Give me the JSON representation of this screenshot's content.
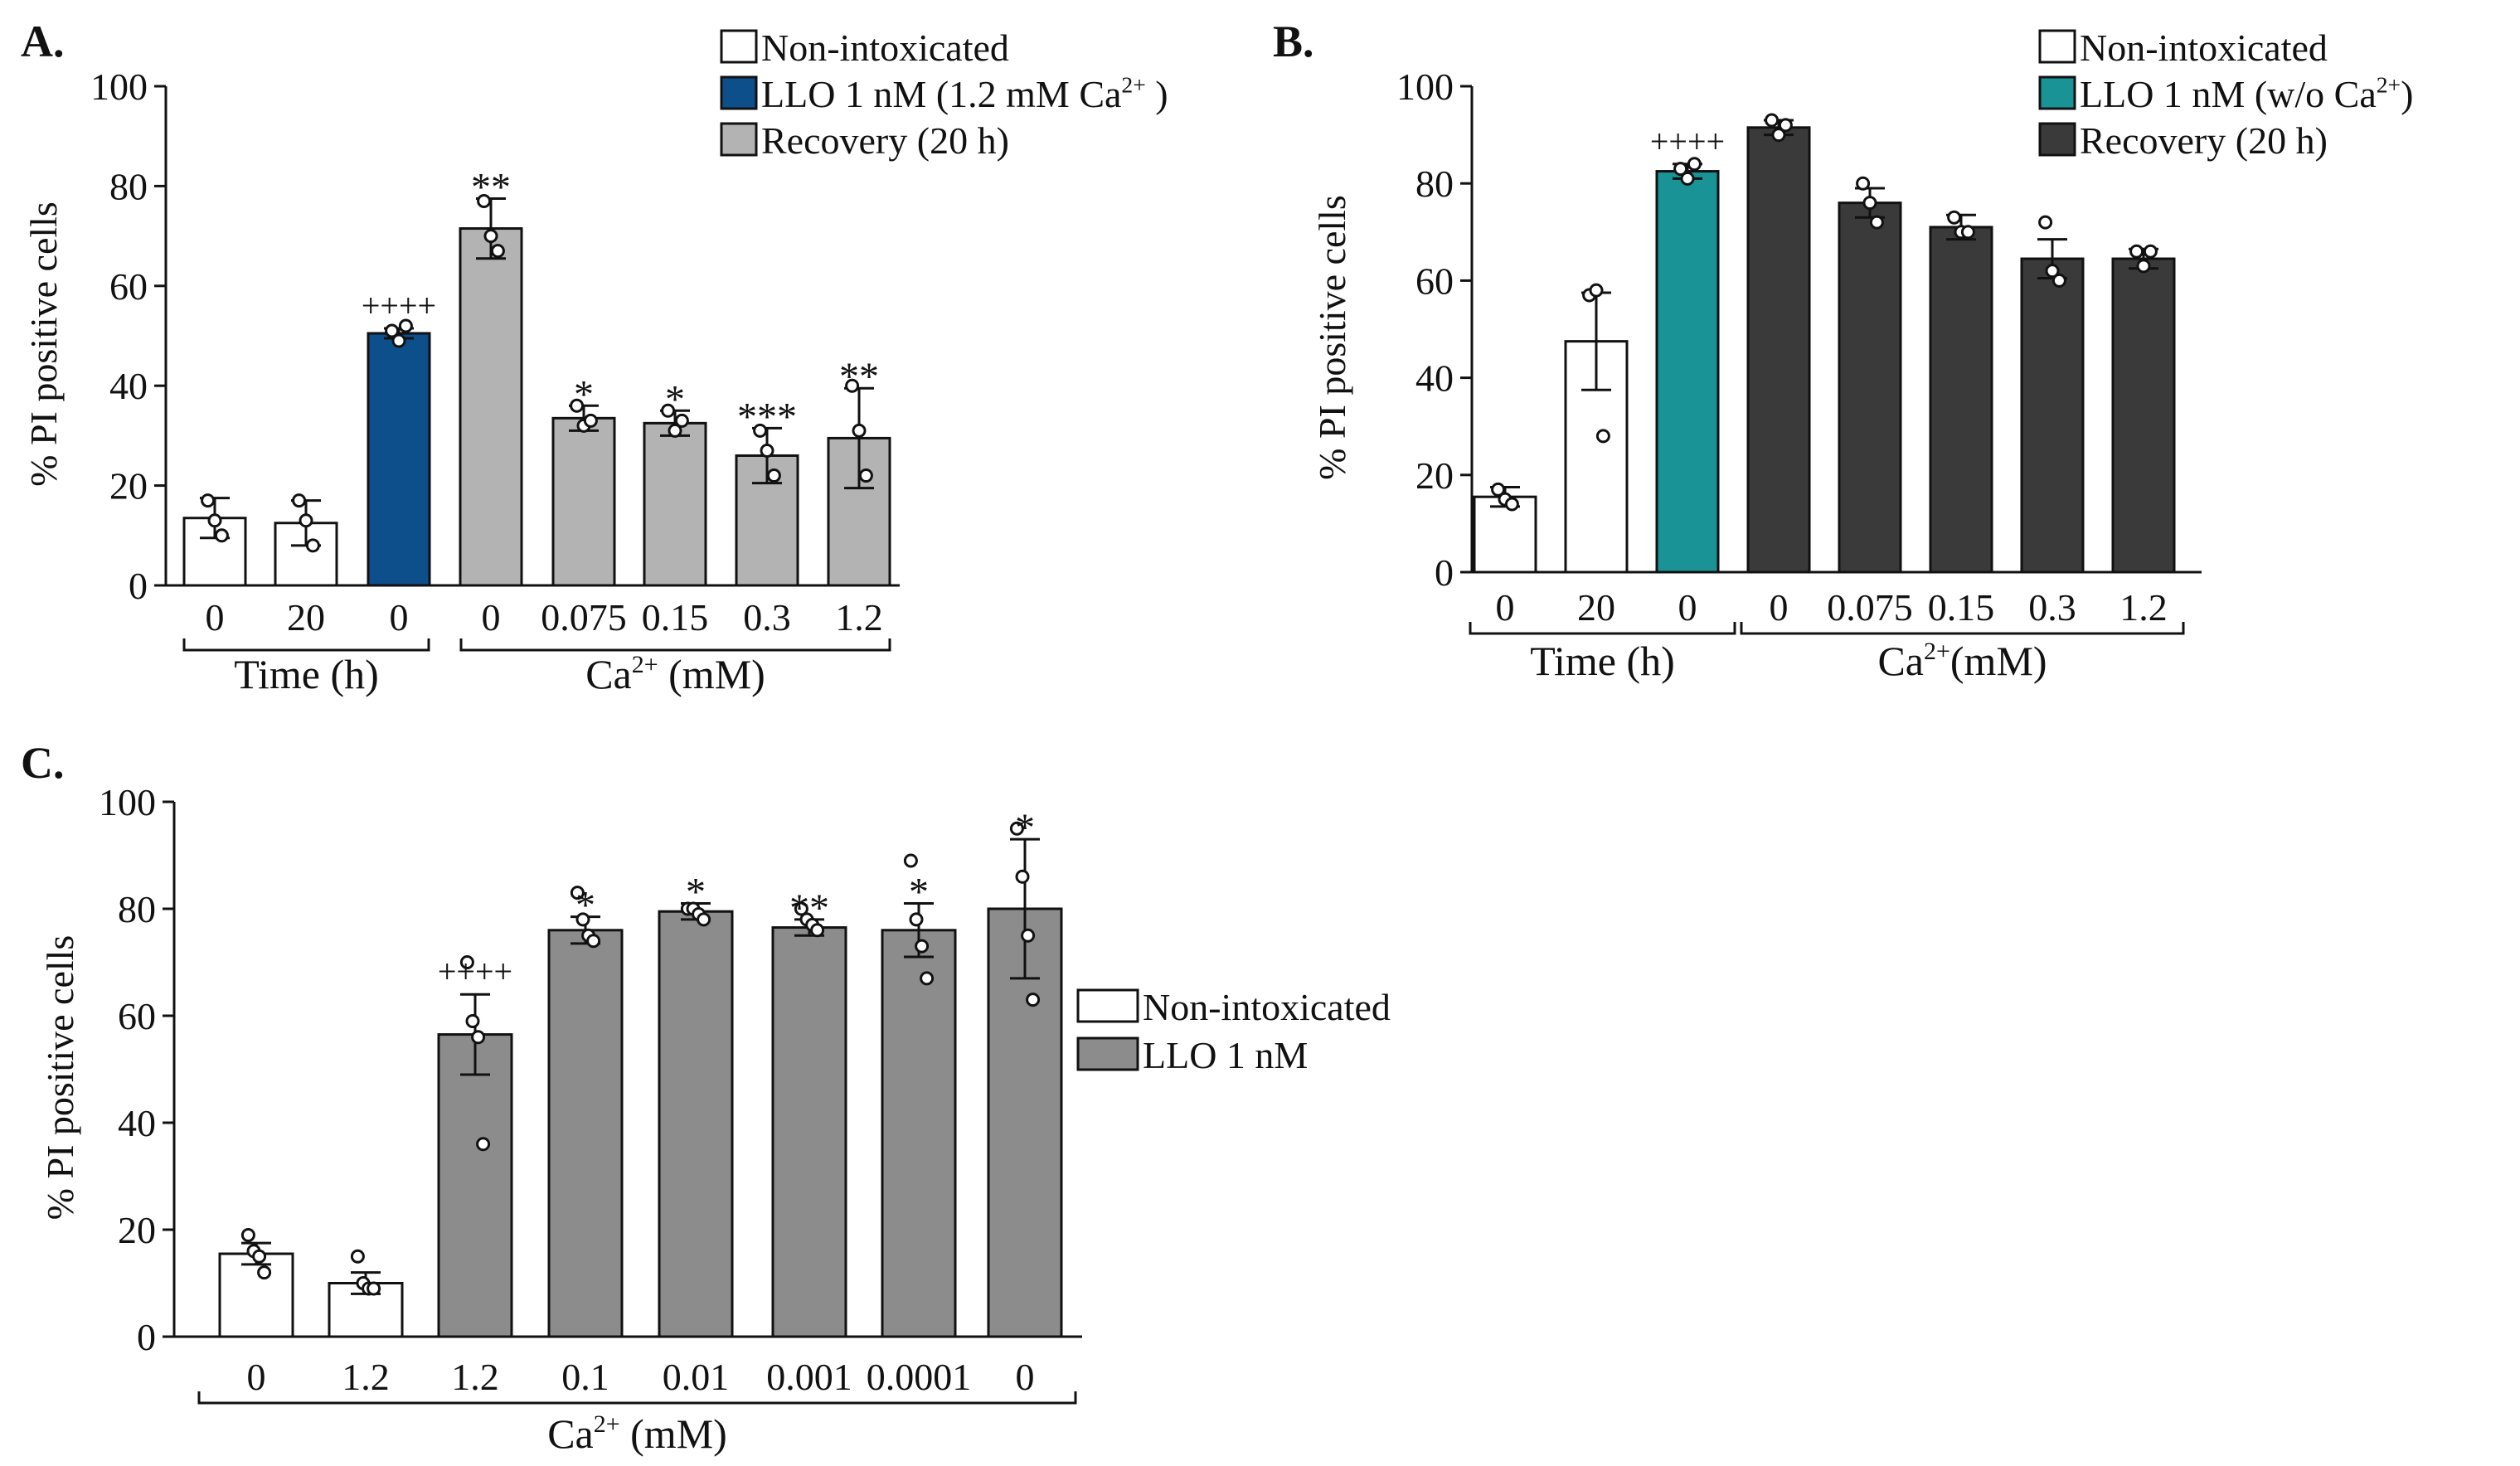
{
  "chart_data": [
    {
      "panel_label": "A.",
      "type": "bar",
      "ylabel": "% PI positive cells",
      "ylim": [
        0,
        100
      ],
      "yticks": [
        "0",
        "20",
        "40",
        "60",
        "80",
        "100"
      ],
      "categories": [
        "0",
        "20",
        "0",
        "0",
        "0.075",
        "0.15",
        "0.3",
        "1.2"
      ],
      "values": [
        13.5,
        12.5,
        50.5,
        71.5,
        33.5,
        32.5,
        26,
        29.5
      ],
      "errors": [
        4,
        4.5,
        1,
        6,
        2.5,
        2.5,
        5.5,
        10
      ],
      "groups": [
        0,
        0,
        1,
        2,
        2,
        2,
        2,
        2
      ],
      "points": [
        [
          17,
          13,
          10
        ],
        [
          17,
          13,
          8
        ],
        [
          51,
          49,
          52
        ],
        [
          77,
          70,
          67
        ],
        [
          36,
          32,
          33
        ],
        [
          35,
          31,
          33
        ],
        [
          31,
          27,
          22
        ],
        [
          40,
          31,
          22
        ]
      ],
      "stars": [
        "",
        "",
        "++++",
        "**",
        "*",
        "*",
        "***",
        "**"
      ],
      "brackets": [
        {
          "label": "Time (h)",
          "from": 0,
          "to": 2
        },
        {
          "label": "Ca",
          "sup": "2+",
          "suffix": " (mM)",
          "from": 3,
          "to": 7
        }
      ],
      "legend": {
        "position": "top-right",
        "entries": [
          {
            "label": "Non-intoxicated",
            "sup": "",
            "after": ""
          },
          {
            "label": "LLO 1 nM (1.2 mM Ca",
            "sup": "2+",
            "after": " )"
          },
          {
            "label": "Recovery (20 h)",
            "sup": "",
            "after": ""
          }
        ]
      },
      "colors": [
        "#ffffff",
        "#0d4f8b",
        "#b3b3b3"
      ]
    },
    {
      "panel_label": "B.",
      "type": "bar",
      "ylabel": "% PI positive cells",
      "ylim": [
        0,
        100
      ],
      "yticks": [
        "0",
        "20",
        "40",
        "60",
        "80",
        "100"
      ],
      "categories": [
        "0",
        "20",
        "0",
        "0",
        "0.075",
        "0.15",
        "0.3",
        "1.2"
      ],
      "values": [
        15.5,
        47.5,
        82.5,
        91.5,
        76,
        71,
        64.5,
        64.5
      ],
      "errors": [
        2,
        10,
        1.5,
        1.5,
        3,
        2.5,
        4,
        2
      ],
      "groups": [
        0,
        0,
        1,
        2,
        2,
        2,
        2,
        2
      ],
      "points": [
        [
          17,
          15,
          14
        ],
        [
          57,
          58,
          28
        ],
        [
          83,
          81,
          84
        ],
        [
          93,
          90,
          92
        ],
        [
          80,
          76,
          72
        ],
        [
          73,
          70,
          70
        ],
        [
          72,
          62,
          60
        ],
        [
          66,
          63,
          66
        ]
      ],
      "stars": [
        "",
        "",
        "++++",
        "",
        "",
        "",
        "",
        ""
      ],
      "brackets": [
        {
          "label": "Time (h)",
          "from": 0,
          "to": 2
        },
        {
          "label": "Ca",
          "sup": "2+",
          "suffix": "(mM)",
          "from": 3,
          "to": 7
        }
      ],
      "legend": {
        "position": "top-right",
        "entries": [
          {
            "label": "Non-intoxicated",
            "sup": "",
            "after": ""
          },
          {
            "label": "LLO 1 nM (w/o Ca",
            "sup": "2+",
            "after": ")"
          },
          {
            "label": "Recovery (20 h)",
            "sup": "",
            "after": ""
          }
        ]
      },
      "colors": [
        "#ffffff",
        "#1a9396",
        "#3a3a3a"
      ]
    },
    {
      "panel_label": "C.",
      "type": "bar",
      "ylabel": "% PI positive cells",
      "ylim": [
        0,
        100
      ],
      "yticks": [
        "0",
        "20",
        "40",
        "60",
        "80",
        "100"
      ],
      "categories": [
        "0",
        "1.2",
        "1.2",
        "0.1",
        "0.01",
        "0.001",
        "0.0001",
        "0"
      ],
      "values": [
        15.5,
        10,
        56.5,
        76,
        79.5,
        76.5,
        76,
        80
      ],
      "errors": [
        2,
        2,
        7.5,
        2.5,
        1.5,
        1.5,
        5,
        13
      ],
      "groups": [
        0,
        0,
        1,
        1,
        1,
        1,
        1,
        1
      ],
      "points": [
        [
          19,
          16,
          15,
          12
        ],
        [
          15,
          10,
          9,
          9
        ],
        [
          70,
          59,
          56,
          36
        ],
        [
          83,
          78,
          75,
          74
        ],
        [
          80,
          80,
          79,
          78
        ],
        [
          80,
          78,
          77,
          76
        ],
        [
          89,
          78,
          73,
          67
        ],
        [
          95,
          86,
          75,
          63
        ]
      ],
      "stars": [
        "",
        "",
        "++++",
        "*",
        "*",
        "**",
        "*",
        "*"
      ],
      "brackets": [
        {
          "label": "Ca",
          "sup": "2+",
          "suffix": " (mM)",
          "from": 0,
          "to": 7
        }
      ],
      "legend": {
        "position": "center-right",
        "entries": [
          {
            "label": "Non-intoxicated",
            "sup": "",
            "after": ""
          },
          {
            "label": "LLO 1 nM",
            "sup": "",
            "after": ""
          }
        ]
      },
      "colors": [
        "#ffffff",
        "#8c8c8c"
      ]
    }
  ]
}
